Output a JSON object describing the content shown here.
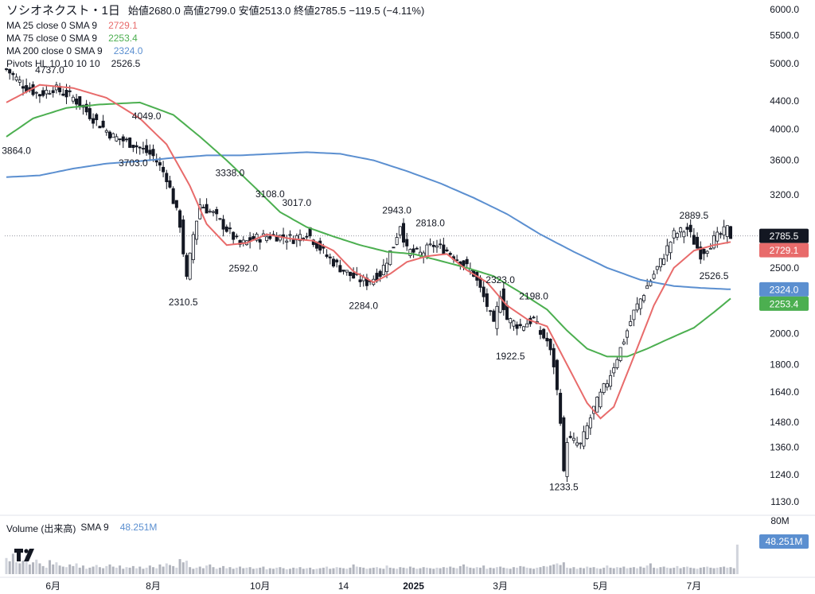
{
  "header": {
    "symbol": "ソシオネクスト・1日",
    "ohlc": "始値2680.0  高値2799.0  安値2513.0  終値2785.5  −119.5 (−4.11%)"
  },
  "legend": {
    "ma25": {
      "label": "MA 25 close 0 SMA 9",
      "value": "2729.1",
      "color": "#e86b6b"
    },
    "ma75": {
      "label": "MA 75 close 0 SMA 9",
      "value": "2253.4",
      "color": "#4caf50"
    },
    "ma200": {
      "label": "MA 200 close 0 SMA 9",
      "value": "2324.0",
      "color": "#5b8fd0"
    },
    "pivots": {
      "label": "Pivots HL  10 10 10 10",
      "value": "2526.5"
    }
  },
  "volume_legend": {
    "label": "Volume (出来高)",
    "sma": "SMA 9",
    "value": "48.251M"
  },
  "chart_data": {
    "type": "candlestick",
    "y_axis": {
      "scale": "log",
      "ticks": [
        "6000.0",
        "5500.0",
        "5000.0",
        "4400.0",
        "4000.0",
        "3600.0",
        "3200.0",
        "2800.0",
        "2500.0",
        "2000.0",
        "1800.0",
        "1640.0",
        "1480.0",
        "1360.0",
        "1240.0",
        "1130.0"
      ],
      "tick_values": [
        6000,
        5500,
        5000,
        4400,
        4000,
        3600,
        3200,
        2800,
        2500,
        2000,
        1800,
        1640,
        1480,
        1360,
        1240,
        1130
      ],
      "range": [
        1080,
        6200
      ],
      "price_labels": [
        {
          "text": "2785.5",
          "value": 2785.5,
          "bg": "#131722",
          "fg": "#ffffff"
        },
        {
          "text": "2729.1",
          "value": 2729.1,
          "bg": "#e86b6b",
          "fg": "#ffffff"
        },
        {
          "text": "2324.0",
          "value": 2324.0,
          "bg": "#5b8fd0",
          "fg": "#ffffff"
        },
        {
          "text": "2253.4",
          "value": 2253.4,
          "bg": "#4caf50",
          "fg": "#ffffff"
        }
      ],
      "last_close": 2785.5
    },
    "x_axis": {
      "labels": [
        "6月",
        "8月",
        "10月",
        "14",
        "2025",
        "3月",
        "5月",
        "7月"
      ],
      "label_index": [
        14,
        44,
        76,
        101,
        122,
        148,
        178,
        206
      ]
    },
    "volume_axis": {
      "tick": "80M",
      "label": "48.251M"
    },
    "pivots": [
      {
        "text": "3864.0",
        "index": 3,
        "value": 3864
      },
      {
        "text": "4737.0",
        "index": 13,
        "value": 4737
      },
      {
        "text": "4049.0",
        "index": 42,
        "value": 4049
      },
      {
        "text": "3703.0",
        "index": 38,
        "value": 3703
      },
      {
        "text": "3338.0",
        "index": 67,
        "value": 3338
      },
      {
        "text": "2310.5",
        "index": 53,
        "value": 2310.5
      },
      {
        "text": "3108.0",
        "index": 79,
        "value": 3108
      },
      {
        "text": "3017.0",
        "index": 87,
        "value": 3017
      },
      {
        "text": "2592.0",
        "index": 71,
        "value": 2592
      },
      {
        "text": "2943.0",
        "index": 117,
        "value": 2943
      },
      {
        "text": "2818.0",
        "index": 127,
        "value": 2818
      },
      {
        "text": "2284.0",
        "index": 107,
        "value": 2284
      },
      {
        "text": "2323.0",
        "index": 148,
        "value": 2323
      },
      {
        "text": "2198.0",
        "index": 158,
        "value": 2198
      },
      {
        "text": "1922.5",
        "index": 151,
        "value": 1922.5
      },
      {
        "text": "1233.5",
        "index": 167,
        "value": 1233.5
      },
      {
        "text": "2889.5",
        "index": 206,
        "value": 2889.5
      },
      {
        "text": "2526.5",
        "index": 212,
        "value": 2526.5
      }
    ],
    "ma25_path": [
      [
        0,
        4380
      ],
      [
        10,
        4650
      ],
      [
        20,
        4600
      ],
      [
        30,
        4450
      ],
      [
        40,
        4150
      ],
      [
        48,
        3800
      ],
      [
        55,
        3300
      ],
      [
        60,
        2900
      ],
      [
        66,
        2700
      ],
      [
        72,
        2720
      ],
      [
        78,
        2800
      ],
      [
        85,
        2760
      ],
      [
        92,
        2740
      ],
      [
        98,
        2650
      ],
      [
        104,
        2470
      ],
      [
        110,
        2380
      ],
      [
        115,
        2450
      ],
      [
        120,
        2550
      ],
      [
        126,
        2600
      ],
      [
        132,
        2620
      ],
      [
        138,
        2480
      ],
      [
        144,
        2380
      ],
      [
        150,
        2200
      ],
      [
        156,
        2100
      ],
      [
        162,
        2050
      ],
      [
        168,
        1800
      ],
      [
        174,
        1580
      ],
      [
        178,
        1500
      ],
      [
        182,
        1560
      ],
      [
        188,
        1850
      ],
      [
        194,
        2200
      ],
      [
        200,
        2500
      ],
      [
        206,
        2650
      ],
      [
        212,
        2700
      ],
      [
        217,
        2729
      ]
    ],
    "ma75_path": [
      [
        0,
        3900
      ],
      [
        8,
        4150
      ],
      [
        18,
        4300
      ],
      [
        28,
        4350
      ],
      [
        40,
        4380
      ],
      [
        50,
        4200
      ],
      [
        58,
        3900
      ],
      [
        66,
        3600
      ],
      [
        74,
        3300
      ],
      [
        82,
        3020
      ],
      [
        90,
        2870
      ],
      [
        98,
        2780
      ],
      [
        106,
        2700
      ],
      [
        114,
        2640
      ],
      [
        122,
        2620
      ],
      [
        130,
        2560
      ],
      [
        138,
        2500
      ],
      [
        146,
        2430
      ],
      [
        154,
        2300
      ],
      [
        162,
        2170
      ],
      [
        168,
        2020
      ],
      [
        174,
        1900
      ],
      [
        180,
        1850
      ],
      [
        186,
        1850
      ],
      [
        192,
        1900
      ],
      [
        198,
        1960
      ],
      [
        206,
        2040
      ],
      [
        212,
        2150
      ],
      [
        217,
        2253
      ]
    ],
    "ma200_path": [
      [
        0,
        3400
      ],
      [
        10,
        3420
      ],
      [
        20,
        3500
      ],
      [
        30,
        3560
      ],
      [
        40,
        3590
      ],
      [
        50,
        3630
      ],
      [
        60,
        3660
      ],
      [
        70,
        3660
      ],
      [
        80,
        3680
      ],
      [
        90,
        3700
      ],
      [
        100,
        3680
      ],
      [
        110,
        3600
      ],
      [
        120,
        3470
      ],
      [
        130,
        3330
      ],
      [
        140,
        3170
      ],
      [
        150,
        3000
      ],
      [
        160,
        2800
      ],
      [
        170,
        2640
      ],
      [
        180,
        2500
      ],
      [
        190,
        2400
      ],
      [
        200,
        2350
      ],
      [
        208,
        2335
      ],
      [
        217,
        2324
      ]
    ],
    "candles_summary": {
      "count": 218,
      "close_path": [
        [
          0,
          4900
        ],
        [
          6,
          4600
        ],
        [
          10,
          4500
        ],
        [
          14,
          4600
        ],
        [
          20,
          4450
        ],
        [
          26,
          4150
        ],
        [
          32,
          3900
        ],
        [
          38,
          3800
        ],
        [
          44,
          3650
        ],
        [
          48,
          3400
        ],
        [
          52,
          2900
        ],
        [
          54,
          2400
        ],
        [
          56,
          2800
        ],
        [
          58,
          3100
        ],
        [
          62,
          3000
        ],
        [
          66,
          2850
        ],
        [
          70,
          2700
        ],
        [
          74,
          2760
        ],
        [
          80,
          2790
        ],
        [
          86,
          2760
        ],
        [
          90,
          2820
        ],
        [
          96,
          2600
        ],
        [
          100,
          2500
        ],
        [
          104,
          2420
        ],
        [
          108,
          2380
        ],
        [
          112,
          2450
        ],
        [
          116,
          2700
        ],
        [
          118,
          2900
        ],
        [
          120,
          2650
        ],
        [
          124,
          2620
        ],
        [
          128,
          2700
        ],
        [
          132,
          2650
        ],
        [
          136,
          2560
        ],
        [
          140,
          2450
        ],
        [
          144,
          2200
        ],
        [
          146,
          2050
        ],
        [
          148,
          2300
        ],
        [
          150,
          2100
        ],
        [
          154,
          2050
        ],
        [
          158,
          2100
        ],
        [
          160,
          2000
        ],
        [
          162,
          1950
        ],
        [
          164,
          1800
        ],
        [
          166,
          1500
        ],
        [
          167,
          1240
        ],
        [
          168,
          1400
        ],
        [
          172,
          1370
        ],
        [
          176,
          1550
        ],
        [
          180,
          1700
        ],
        [
          184,
          1900
        ],
        [
          188,
          2150
        ],
        [
          192,
          2350
        ],
        [
          196,
          2550
        ],
        [
          200,
          2800
        ],
        [
          204,
          2850
        ],
        [
          208,
          2620
        ],
        [
          212,
          2750
        ],
        [
          216,
          2850
        ],
        [
          217,
          2785
        ]
      ]
    },
    "volume_summary": {
      "count": 218,
      "values": [
        30,
        24,
        38,
        22,
        20,
        25,
        35,
        18,
        22,
        27,
        20,
        15,
        12,
        26,
        18,
        22,
        16,
        14,
        13,
        18,
        15,
        20,
        12,
        16,
        10,
        12,
        14,
        17,
        13,
        11,
        15,
        18,
        14,
        12,
        16,
        10,
        13,
        12,
        15,
        11,
        14,
        10,
        12,
        16,
        13,
        11,
        18,
        14,
        20,
        17,
        15,
        12,
        28,
        22,
        25,
        13,
        10,
        12,
        14,
        11,
        16,
        18,
        13,
        10,
        12,
        15,
        11,
        13,
        10,
        12,
        14,
        11,
        12,
        13,
        10,
        11,
        12,
        14,
        9,
        11,
        10,
        12,
        13,
        11,
        9,
        10,
        12,
        11,
        13,
        10,
        11,
        12,
        9,
        10,
        11,
        12,
        14,
        10,
        11,
        13,
        12,
        11,
        10,
        12,
        18,
        14,
        13,
        12,
        10,
        11,
        12,
        13,
        11,
        10,
        16,
        12,
        11,
        10,
        13,
        12,
        11,
        14,
        12,
        10,
        11,
        13,
        12,
        11,
        10,
        12,
        11,
        13,
        12,
        14,
        12,
        11,
        15,
        18,
        14,
        12,
        11,
        13,
        12,
        16,
        10,
        12,
        11,
        13,
        14,
        12,
        11,
        10,
        13,
        12,
        15,
        14,
        12,
        11,
        10,
        12,
        13,
        15,
        14,
        16,
        18,
        20,
        17,
        22,
        12,
        11,
        13,
        10,
        12,
        11,
        14,
        12,
        13,
        11,
        10,
        12,
        16,
        12,
        11,
        13,
        12,
        14,
        11,
        12,
        13,
        11,
        14,
        12,
        16,
        20,
        12,
        11,
        13,
        14,
        12,
        11,
        12,
        15,
        11,
        13,
        14,
        12,
        11,
        10,
        12,
        13,
        14,
        12,
        11,
        12,
        13,
        14,
        12,
        13,
        11,
        55
      ],
      "max": 80
    }
  }
}
